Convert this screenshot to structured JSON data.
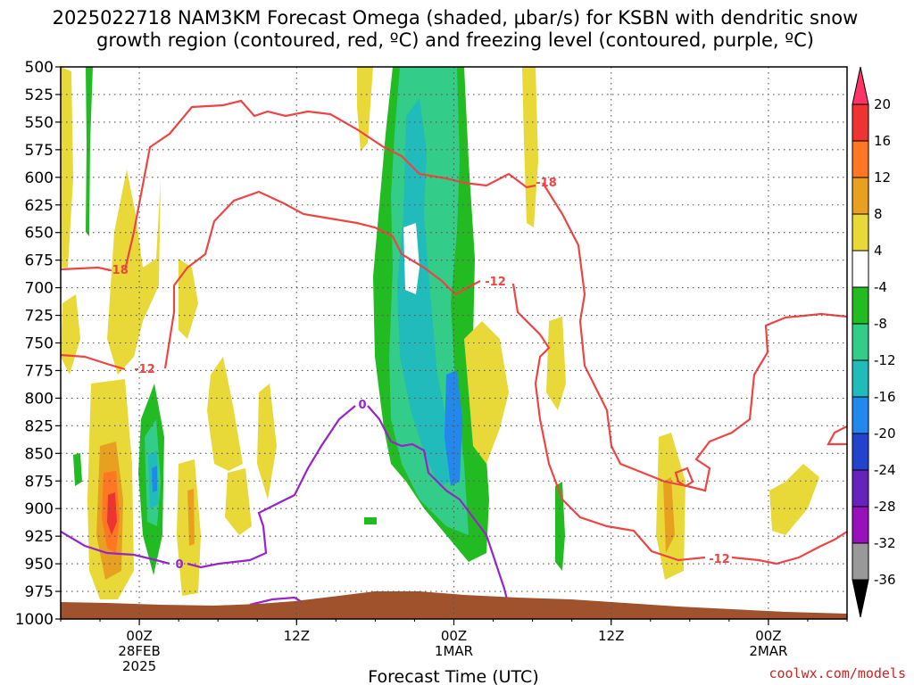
{
  "title_line1": "2025022718 NAM3KM Forecast Omega (shaded, μbar/s) for KSBN with dendritic snow",
  "title_line2": "growth region (contoured, red, ºC) and freezing level (contoured, purple, ºC)",
  "credit": "coolwx.com/models",
  "chart_data": {
    "type": "heatmap",
    "xlabel": "Forecast Time (UTC)",
    "ylabel": "",
    "y_scale": "pressure (hPa), inverted",
    "ylim": [
      1000,
      500
    ],
    "y_ticks": [
      "500",
      "525",
      "550",
      "575",
      "600",
      "625",
      "650",
      "675",
      "700",
      "725",
      "750",
      "775",
      "800",
      "825",
      "850",
      "875",
      "900",
      "925",
      "950",
      "975",
      "1000"
    ],
    "xlim": [
      18,
      78
    ],
    "x_ticks": [
      {
        "x": 24,
        "lines": [
          "00Z",
          "28FEB",
          "2025"
        ]
      },
      {
        "x": 36,
        "lines": [
          "12Z"
        ]
      },
      {
        "x": 48,
        "lines": [
          "00Z",
          "1MAR"
        ]
      },
      {
        "x": 60,
        "lines": [
          "12Z"
        ]
      },
      {
        "x": 72,
        "lines": [
          "00Z",
          "2MAR"
        ]
      }
    ],
    "grid": true,
    "colorbar": {
      "unit": "μbar/s",
      "levels": [
        "20",
        "16",
        "12",
        "8",
        "4",
        "-4",
        "-8",
        "-12",
        "-16",
        "-20",
        "-24",
        "-28",
        "-32",
        "-36"
      ],
      "colors": [
        "#ff3366",
        "#ee3333",
        "#ff7722",
        "#e8a020",
        "#e8d838",
        "#ffffff",
        "#22bb22",
        "#33cc88",
        "#22bbbb",
        "#2288ee",
        "#2244cc",
        "#6622bb",
        "#9911bb",
        "#999999",
        "#000000"
      ]
    },
    "contour_labels": {
      "dgz_color": "#ee4444",
      "freezing_color": "#9922cc",
      "values": [
        "-18",
        "-12",
        "-18",
        "-12",
        "-12",
        "0",
        "0"
      ]
    },
    "terrain_color": "#a0522d"
  }
}
